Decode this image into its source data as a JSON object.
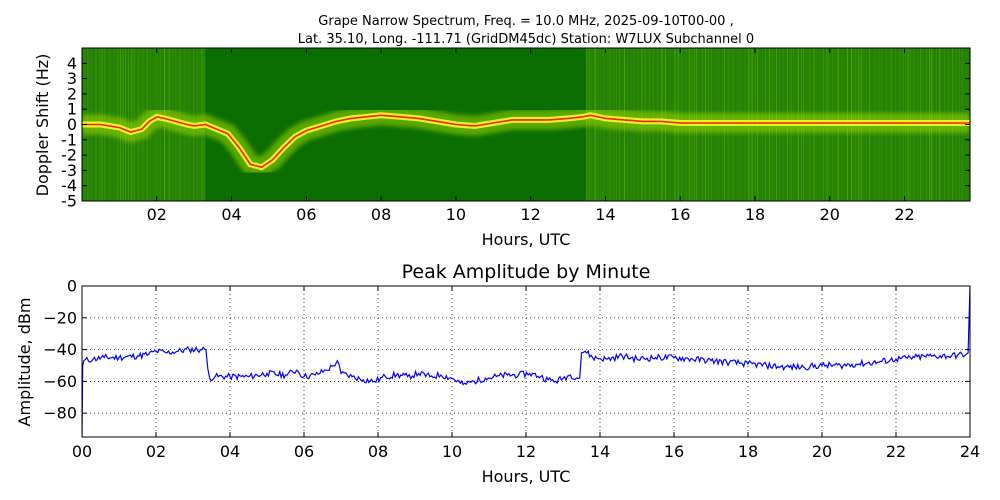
{
  "chart_data": [
    {
      "type": "heatmap",
      "title": "Grape Narrow Spectrum, Freq. = 10.0 MHz, 2025-09-10T00-00 ,",
      "subtitle": "Lat.  35.10, Long. -111.71 (GridDM45dc) Station: W7LUX Subchannel 0",
      "xlabel": "Hours, UTC",
      "ylabel": "Doppler Shift (Hz)",
      "xlim": [
        0,
        23.75
      ],
      "ylim": [
        -5,
        5
      ],
      "x_ticks": [
        2,
        4,
        6,
        8,
        10,
        12,
        14,
        16,
        18,
        20,
        22
      ],
      "x_tick_labels": [
        "02",
        "04",
        "06",
        "08",
        "10",
        "12",
        "14",
        "16",
        "18",
        "20",
        "22"
      ],
      "y_ticks": [
        4,
        3,
        2,
        1,
        0,
        -1,
        -2,
        -3,
        -4,
        -5
      ],
      "y_tick_labels": [
        "4",
        "3",
        "2",
        "1",
        "0",
        "-1",
        "-2",
        "-3",
        "-4",
        "-5"
      ],
      "colors": {
        "background": "#0b6e00",
        "mid": "#8fd400",
        "high": "#ffff00",
        "peak": "#ff2000"
      },
      "high_noise_periods": [
        [
          0,
          3.3
        ],
        [
          13.5,
          23.75
        ]
      ],
      "doppler_trace": {
        "x": [
          0,
          0.5,
          1,
          1.3,
          1.6,
          1.8,
          2,
          2.2,
          2.5,
          2.8,
          3,
          3.3,
          3.6,
          3.9,
          4.2,
          4.5,
          4.8,
          5.1,
          5.4,
          5.7,
          6,
          6.4,
          6.8,
          7.2,
          7.6,
          8,
          8.5,
          9,
          9.5,
          10,
          10.5,
          11,
          11.5,
          12,
          12.5,
          13,
          13.4,
          13.6,
          14,
          14.5,
          15,
          15.5,
          16,
          17,
          18,
          19,
          20,
          21,
          22,
          23,
          23.75
        ],
        "y": [
          0,
          0,
          -0.2,
          -0.5,
          -0.3,
          0.2,
          0.5,
          0.4,
          0.2,
          0,
          -0.1,
          0,
          -0.3,
          -0.6,
          -1.5,
          -2.6,
          -2.8,
          -2.3,
          -1.5,
          -0.8,
          -0.4,
          -0.1,
          0.2,
          0.4,
          0.5,
          0.6,
          0.5,
          0.4,
          0.2,
          0,
          -0.1,
          0.1,
          0.3,
          0.3,
          0.3,
          0.4,
          0.5,
          0.6,
          0.4,
          0.3,
          0.2,
          0.2,
          0.1,
          0.1,
          0.1,
          0.1,
          0.1,
          0.1,
          0.1,
          0.1,
          0.1
        ]
      }
    },
    {
      "type": "line",
      "title": "Peak Amplitude by Minute",
      "xlabel": "Hours, UTC",
      "ylabel": "Amplitude, dBm",
      "xlim": [
        0,
        24
      ],
      "ylim": [
        -95,
        0
      ],
      "x_ticks": [
        0,
        2,
        4,
        6,
        8,
        10,
        12,
        14,
        16,
        18,
        20,
        22,
        24
      ],
      "x_tick_labels": [
        "00",
        "02",
        "04",
        "06",
        "08",
        "10",
        "12",
        "14",
        "16",
        "18",
        "20",
        "22",
        "24"
      ],
      "y_ticks": [
        0,
        -20,
        -40,
        -60,
        -80
      ],
      "y_tick_labels": [
        "0",
        "−20",
        "−40",
        "−60",
        "−80"
      ],
      "grid": true,
      "color": "#0000ff",
      "series": [
        {
          "x": [
            0,
            0.02,
            0.05,
            0.3,
            0.6,
            1,
            1.5,
            1.8,
            2,
            2.3,
            2.6,
            2.9,
            3.2,
            3.35,
            3.4,
            3.45,
            3.6,
            4,
            4.5,
            5,
            5.5,
            5.8,
            6,
            6.3,
            6.6,
            6.8,
            6.9,
            7,
            7.3,
            7.6,
            7.9,
            8.2,
            8.5,
            8.8,
            9.1,
            9.4,
            9.7,
            10,
            10.3,
            10.6,
            10.9,
            11.2,
            11.5,
            11.8,
            12.1,
            12.4,
            12.6,
            12.8,
            13,
            13.2,
            13.45,
            13.5,
            13.6,
            13.8,
            14.2,
            14.6,
            15,
            15.5,
            16,
            16.5,
            17,
            17.5,
            18,
            18.5,
            19,
            19.5,
            20,
            20.5,
            21,
            21.5,
            22,
            22.5,
            23,
            23.5,
            23.9,
            23.95,
            24
          ],
          "y": [
            -95,
            -50,
            -47,
            -46,
            -45,
            -45,
            -44,
            -43,
            -41,
            -42,
            -41,
            -40,
            -40,
            -40,
            -52,
            -58,
            -57,
            -57,
            -57,
            -55,
            -56,
            -53,
            -57,
            -56,
            -53,
            -50,
            -47,
            -55,
            -57,
            -59,
            -60,
            -57,
            -56,
            -57,
            -55,
            -57,
            -56,
            -58,
            -62,
            -60,
            -58,
            -57,
            -56,
            -56,
            -55,
            -57,
            -59,
            -60,
            -58,
            -56,
            -58,
            -42,
            -41,
            -45,
            -46,
            -44,
            -46,
            -45,
            -45,
            -46,
            -47,
            -48,
            -49,
            -50,
            -51,
            -51,
            -50,
            -50,
            -49,
            -48,
            -46,
            -45,
            -44,
            -44,
            -43,
            -42,
            0
          ]
        }
      ]
    }
  ]
}
